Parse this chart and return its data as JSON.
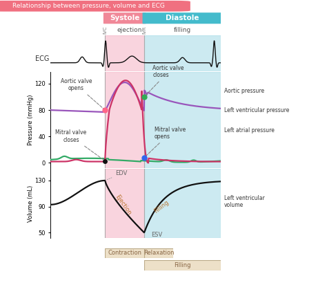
{
  "title": "Relationship between pressure, volume and ECG",
  "title_bg": "#f07080",
  "systole_color": "#f5b8c8",
  "diastole_color": "#aadde8",
  "systole_label": "Systole",
  "diastole_label": "Diastole",
  "ejection_label": "ejection",
  "filling_label": "filling",
  "ivc_label": "IVC",
  "ivr_label": "IVR",
  "pressure_ylabel": "Pressure (mmHg)",
  "volume_ylabel": "Volume (mL)",
  "ecg_label": "ECG",
  "aortic_pressure_label": "Aortic pressure",
  "lv_pressure_label": "Left ventricular pressure",
  "la_pressure_label": "Left atrial pressure",
  "lv_volume_label": "Left ventricular\nvolume",
  "aortic_valve_opens_label": "Aortic valve\nopens",
  "aortic_valve_closes_label": "Aortic valve\ncloses",
  "mitral_valve_closes_label": "Mitral valve\ncloses",
  "mitral_valve_opens_label": "Mitral valve\nopens",
  "edv_label": "EDV",
  "esv_label": "ESV",
  "ejection_curve_label": "Ejection",
  "filling_curve_label": "Filling",
  "contraction_label": "Contraction",
  "relaxation_label": "Relaxation",
  "filling_bottom_label": "Filling",
  "aortic_color": "#9955bb",
  "lv_color": "#cc3366",
  "la_color": "#33aa66",
  "volume_color": "#111111",
  "ecg_color": "#111111",
  "s0": 0.32,
  "s1": 0.55,
  "pressure_yticks": [
    0,
    40,
    80,
    120
  ],
  "volume_yticks": [
    50,
    90,
    130
  ],
  "pressure_ylim": [
    -8,
    138
  ],
  "volume_ylim": [
    42,
    148
  ]
}
